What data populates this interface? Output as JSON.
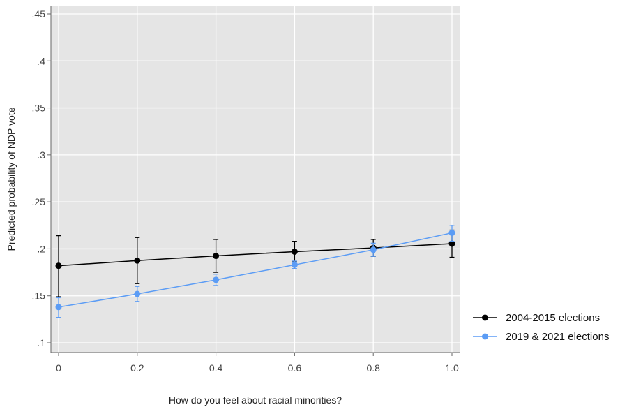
{
  "chart_data": {
    "type": "line",
    "title": "",
    "xlabel": "How do you feel about racial minorities?",
    "ylabel": "Predicted probability of NDP vote",
    "xlim": [
      -0.02,
      1.02
    ],
    "ylim": [
      0.09,
      0.455
    ],
    "x_ticks": [
      0,
      0.2,
      0.4,
      0.6,
      0.8,
      1.0
    ],
    "x_tick_labels": [
      "0",
      "0.2",
      "0.4",
      "0.6",
      "0.8",
      "1.0"
    ],
    "y_ticks": [
      0.1,
      0.15,
      0.2,
      0.25,
      0.3,
      0.35,
      0.4,
      0.45
    ],
    "y_tick_labels": [
      ".1",
      ".15",
      ".2",
      ".25",
      ".3",
      ".35",
      ".4",
      ".45"
    ],
    "grid": true,
    "legend_position": "right",
    "x": [
      0,
      0.2,
      0.4,
      0.6,
      0.8,
      1.0
    ],
    "series": [
      {
        "name": "2004-2015 elections",
        "color": "#000000",
        "values": [
          0.182,
          0.1875,
          0.1925,
          0.197,
          0.201,
          0.2055
        ],
        "ci_low": [
          0.149,
          0.163,
          0.175,
          0.186,
          0.192,
          0.191
        ],
        "ci_high": [
          0.214,
          0.212,
          0.21,
          0.208,
          0.21,
          0.22
        ]
      },
      {
        "name": "2019 & 2021 elections",
        "color": "#5b9cf5",
        "values": [
          0.138,
          0.152,
          0.167,
          0.183,
          0.199,
          0.217
        ],
        "ci_low": [
          0.127,
          0.144,
          0.161,
          0.179,
          0.192,
          0.208
        ],
        "ci_high": [
          0.148,
          0.16,
          0.173,
          0.187,
          0.206,
          0.225
        ]
      }
    ]
  }
}
